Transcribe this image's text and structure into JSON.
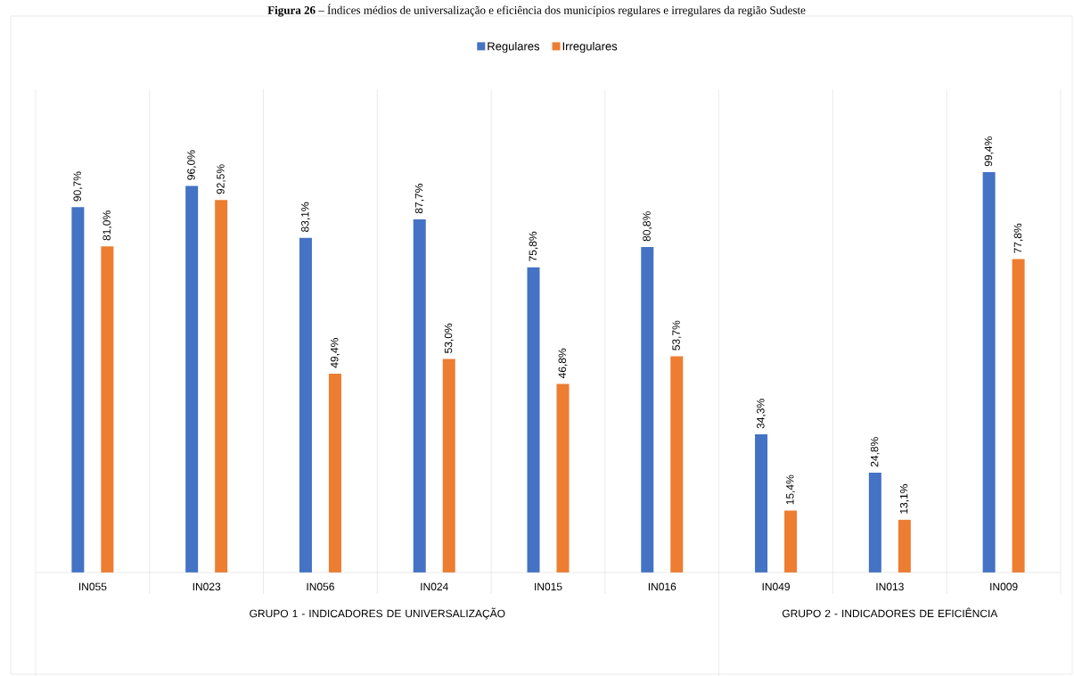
{
  "chart_data": {
    "type": "bar",
    "title": "**Figura 26** – Índices médios de universalização e eficiência dos municípios regulares e irregulares da região Sudeste",
    "categories": [
      "IN055",
      "IN023",
      "IN056",
      "IN024",
      "IN015",
      "IN016",
      "IN049",
      "IN013",
      "IN009"
    ],
    "series": [
      {
        "name": "Regulares",
        "color": "#4472c4",
        "values": [
          90.7,
          96.0,
          83.1,
          87.7,
          75.8,
          80.8,
          34.3,
          24.8,
          99.4
        ],
        "value_labels": [
          "90,7%",
          "96,0%",
          "83,1%",
          "87,7%",
          "75,8%",
          "80,8%",
          "34,3%",
          "24,8%",
          "99,4%"
        ]
      },
      {
        "name": "Irregulares",
        "color": "#ed7d31",
        "values": [
          81.0,
          92.5,
          49.4,
          53.0,
          46.8,
          53.7,
          15.4,
          13.1,
          77.8
        ],
        "value_labels": [
          "81,0%",
          "92,5%",
          "49,4%",
          "53,0%",
          "46,8%",
          "53,7%",
          "15,4%",
          "13,1%",
          "77,8%"
        ]
      }
    ],
    "annotations": [
      "GRUPO 1 - INDICADORES DE UNIVERSALIZAÇÃO",
      "GRUPO 2 - INDICADORES DE EFICIÊNCIA"
    ],
    "ylim": [
      0,
      120
    ],
    "grid": "x",
    "legend": "top"
  }
}
